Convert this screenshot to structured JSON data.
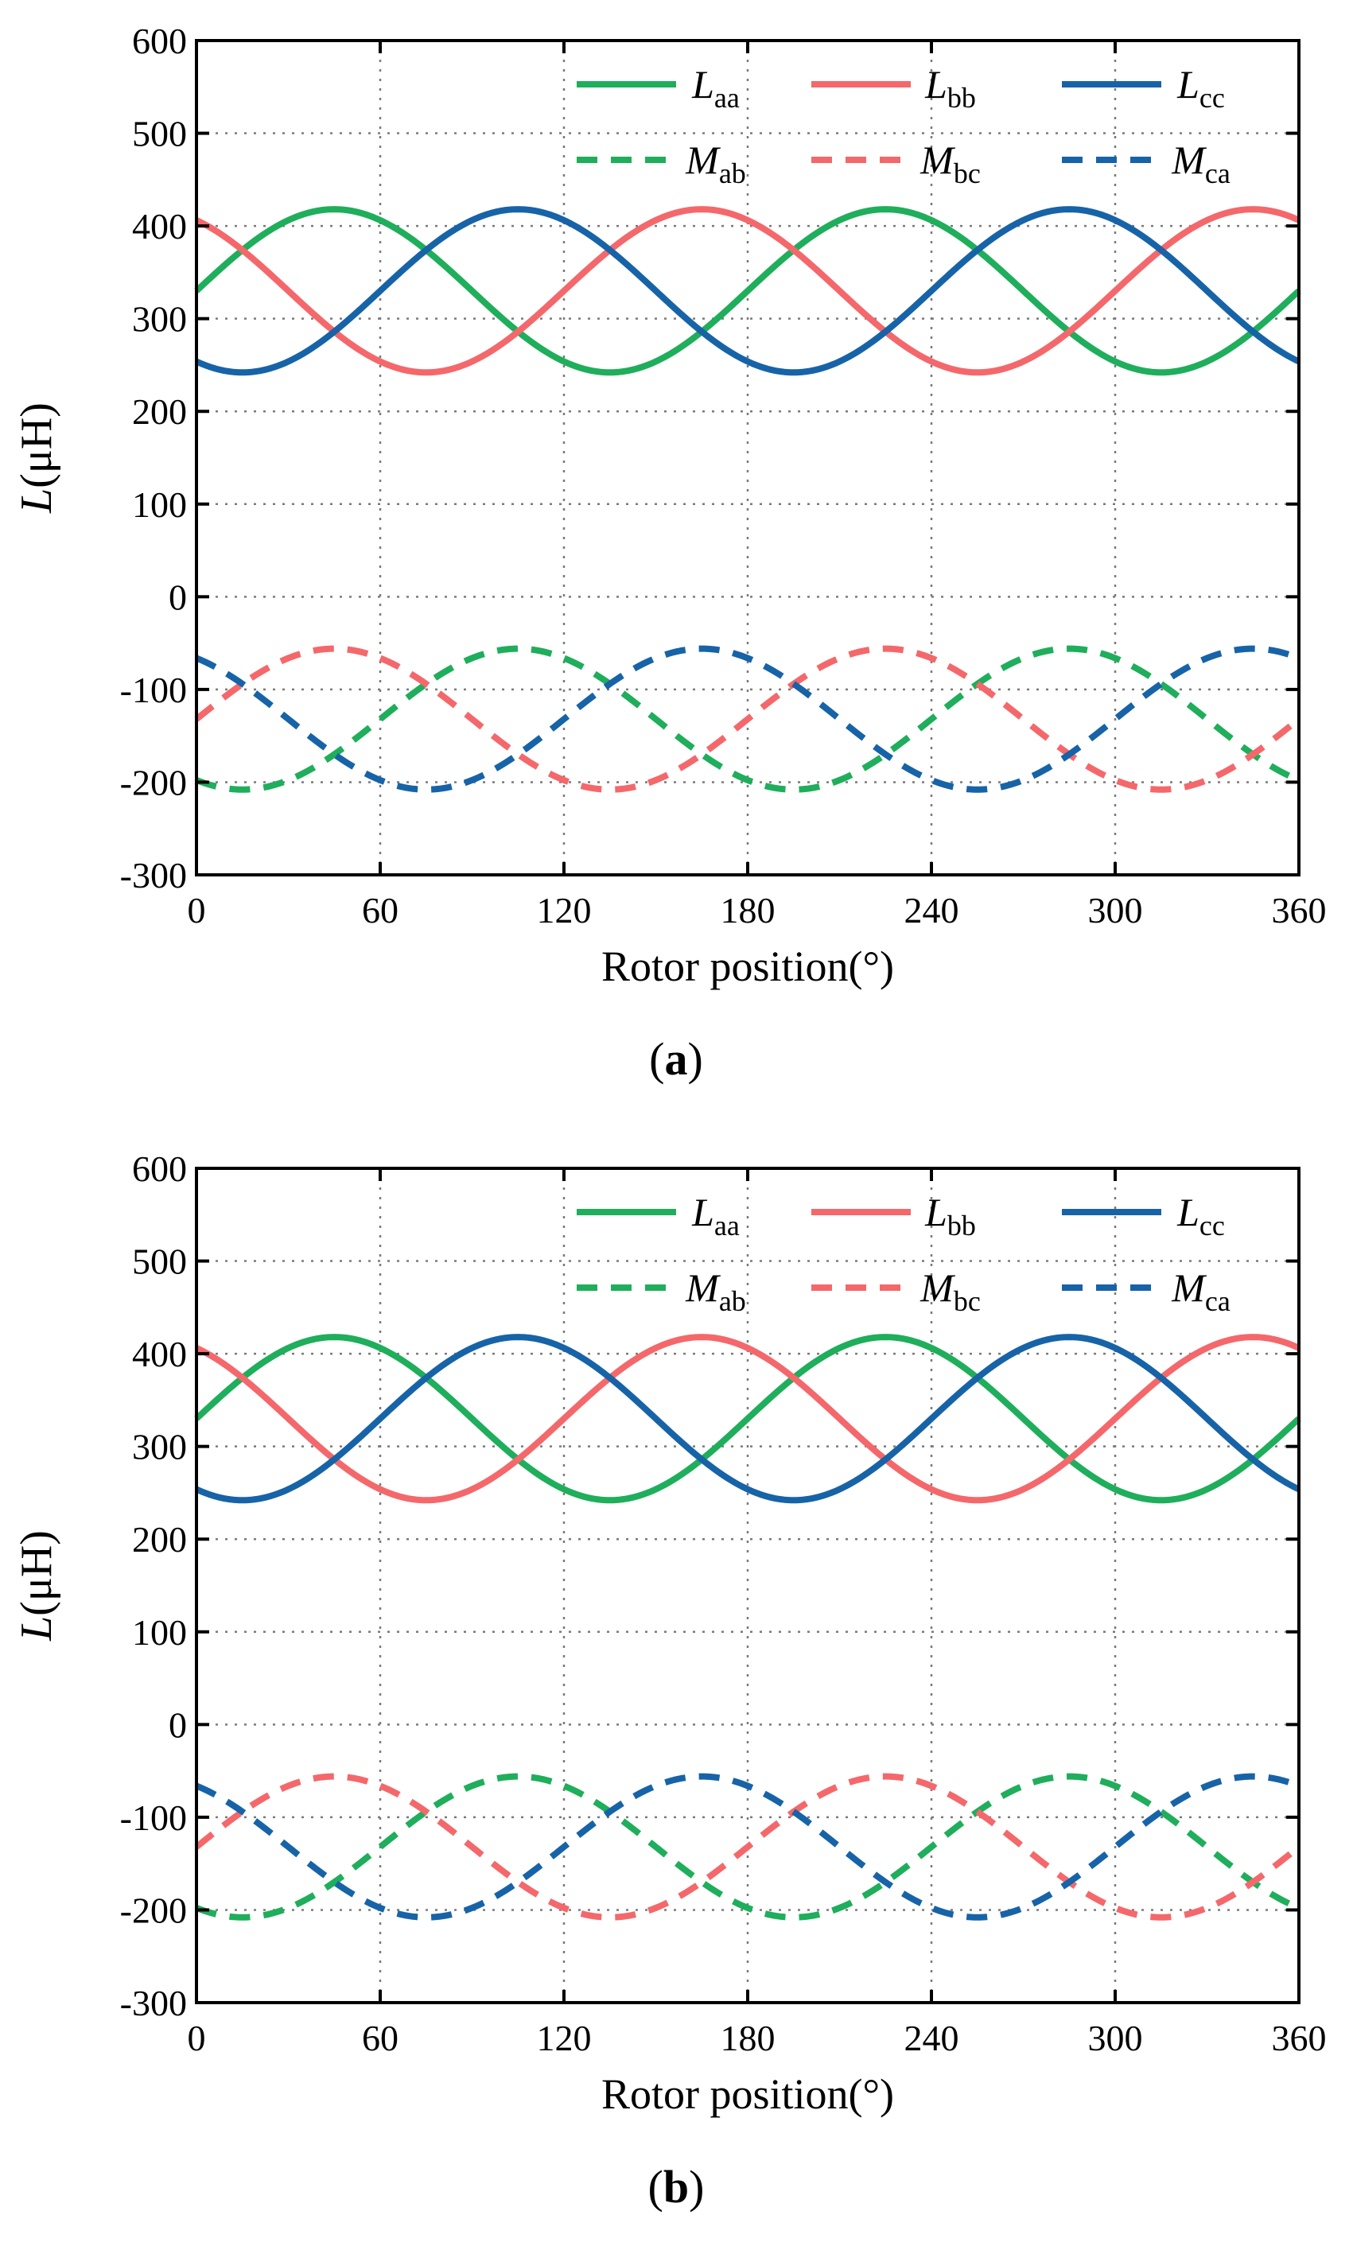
{
  "chart_data": [
    {
      "type": "line",
      "panel_label": "a",
      "xlabel": "Rotor position(°)",
      "ylabel": {
        "italic": "L",
        "rest": "(μH)"
      },
      "xlim": [
        0,
        360
      ],
      "ylim": [
        -300,
        600
      ],
      "xticks": [
        0,
        60,
        120,
        180,
        240,
        300,
        360
      ],
      "yticks": [
        -300,
        -200,
        -100,
        0,
        100,
        200,
        300,
        400,
        500,
        600
      ],
      "grid": true,
      "legend_position": "top-right",
      "series": [
        {
          "name": "Laa",
          "symbol": "L",
          "sub": "aa",
          "style": "solid",
          "color": "#1fae5b",
          "offset": 0,
          "mean": 330,
          "amp": 88
        },
        {
          "name": "Lbb",
          "symbol": "L",
          "sub": "bb",
          "style": "solid",
          "color": "#f4686b",
          "offset": 120,
          "mean": 330,
          "amp": 88
        },
        {
          "name": "Lcc",
          "symbol": "L",
          "sub": "cc",
          "style": "solid",
          "color": "#1763a8",
          "offset": 240,
          "mean": 330,
          "amp": 88
        },
        {
          "name": "Mab",
          "symbol": "M",
          "sub": "ab",
          "style": "dashed",
          "color": "#1fae5b",
          "offset": 60,
          "mean": -132,
          "amp": 76
        },
        {
          "name": "Mbc",
          "symbol": "M",
          "sub": "bc",
          "style": "dashed",
          "color": "#f4686b",
          "offset": 180,
          "mean": -132,
          "amp": 76
        },
        {
          "name": "Mca",
          "symbol": "M",
          "sub": "ca",
          "style": "dashed",
          "color": "#1763a8",
          "offset": 300,
          "mean": -132,
          "amp": 76
        }
      ],
      "waveform": {
        "period_deg": 180,
        "peak_deg": 45
      }
    },
    {
      "type": "line",
      "panel_label": "b",
      "xlabel": "Rotor position(°)",
      "ylabel": {
        "italic": "L",
        "rest": "(μH)"
      },
      "xlim": [
        0,
        360
      ],
      "ylim": [
        -300,
        600
      ],
      "xticks": [
        0,
        60,
        120,
        180,
        240,
        300,
        360
      ],
      "yticks": [
        -300,
        -200,
        -100,
        0,
        100,
        200,
        300,
        400,
        500,
        600
      ],
      "grid": true,
      "legend_position": "top-right",
      "series": [
        {
          "name": "Laa",
          "symbol": "L",
          "sub": "aa",
          "style": "solid",
          "color": "#1fae5b",
          "offset": 0,
          "mean": 330,
          "amp": 88
        },
        {
          "name": "Lbb",
          "symbol": "L",
          "sub": "bb",
          "style": "solid",
          "color": "#f4686b",
          "offset": 120,
          "mean": 330,
          "amp": 88
        },
        {
          "name": "Lcc",
          "symbol": "L",
          "sub": "cc",
          "style": "solid",
          "color": "#1763a8",
          "offset": 240,
          "mean": 330,
          "amp": 88
        },
        {
          "name": "Mab",
          "symbol": "M",
          "sub": "ab",
          "style": "dashed",
          "color": "#1fae5b",
          "offset": 60,
          "mean": -132,
          "amp": 76
        },
        {
          "name": "Mbc",
          "symbol": "M",
          "sub": "bc",
          "style": "dashed",
          "color": "#f4686b",
          "offset": 180,
          "mean": -132,
          "amp": 76
        },
        {
          "name": "Mca",
          "symbol": "M",
          "sub": "ca",
          "style": "dashed",
          "color": "#1763a8",
          "offset": 300,
          "mean": -132,
          "amp": 76
        }
      ],
      "waveform": {
        "period_deg": 180,
        "peak_deg": 45
      }
    }
  ]
}
